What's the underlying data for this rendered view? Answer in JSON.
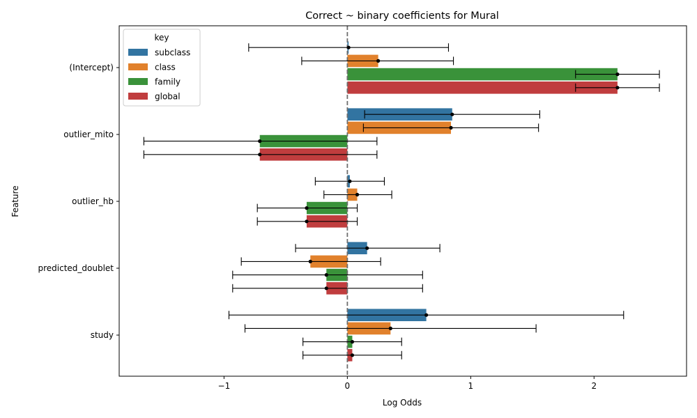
{
  "chart_data": {
    "type": "bar",
    "orientation": "horizontal",
    "title": "Correct ~ binary coefficients for Mural",
    "xlabel": "Log Odds",
    "ylabel": "Feature",
    "xlim": [
      -1.85,
      2.75
    ],
    "xticks": [
      -1,
      0,
      1,
      2
    ],
    "reference_line": 0,
    "legend": {
      "title": "key",
      "placement": "top-left"
    },
    "categories": [
      "(Intercept)",
      "outlier_mito",
      "outlier_hb",
      "predicted_doublet",
      "study"
    ],
    "series": [
      {
        "name": "subclass",
        "color": "#3274a1",
        "values": [
          0.01,
          0.85,
          0.02,
          0.16,
          0.64
        ],
        "ci_low": [
          -0.8,
          0.14,
          -0.26,
          -0.42,
          -0.96
        ],
        "ci_high": [
          0.82,
          1.56,
          0.3,
          0.75,
          2.24
        ]
      },
      {
        "name": "class",
        "color": "#e1812c",
        "values": [
          0.25,
          0.84,
          0.08,
          -0.3,
          0.35
        ],
        "ci_low": [
          -0.37,
          0.13,
          -0.19,
          -0.86,
          -0.83
        ],
        "ci_high": [
          0.86,
          1.55,
          0.36,
          0.27,
          1.53
        ]
      },
      {
        "name": "family",
        "color": "#3a923a",
        "values": [
          2.19,
          -0.71,
          -0.33,
          -0.17,
          0.04
        ],
        "ci_low": [
          1.85,
          -1.65,
          -0.73,
          -0.93,
          -0.36
        ],
        "ci_high": [
          2.53,
          0.24,
          0.08,
          0.61,
          0.44
        ]
      },
      {
        "name": "global",
        "color": "#c03d3e",
        "values": [
          2.19,
          -0.71,
          -0.33,
          -0.17,
          0.04
        ],
        "ci_low": [
          1.85,
          -1.65,
          -0.73,
          -0.93,
          -0.36
        ],
        "ci_high": [
          2.53,
          0.24,
          0.08,
          0.61,
          0.44
        ]
      }
    ]
  }
}
